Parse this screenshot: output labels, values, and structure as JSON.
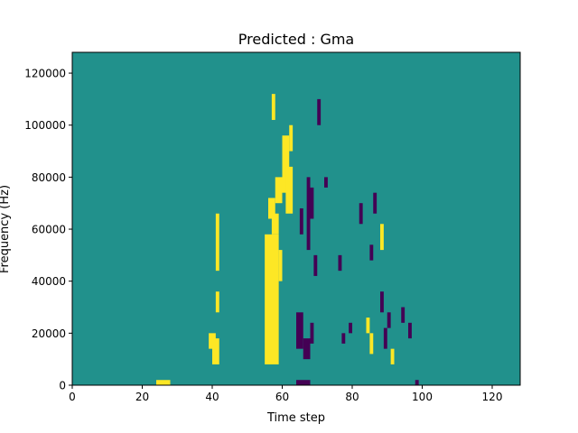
{
  "chart_data": {
    "type": "heatmap",
    "title": "Predicted : Gma",
    "xlabel": "Time step",
    "ylabel": "Frequency (Hz)",
    "xlim": [
      0,
      128
    ],
    "ylim": [
      0,
      128000
    ],
    "xticks": [
      0,
      20,
      40,
      60,
      80,
      100,
      120
    ],
    "yticks": [
      0,
      20000,
      40000,
      60000,
      80000,
      100000,
      120000
    ],
    "xtick_labels": [
      "0",
      "20",
      "40",
      "60",
      "80",
      "100",
      "120"
    ],
    "ytick_labels": [
      "0",
      "20000",
      "40000",
      "60000",
      "80000",
      "100000",
      "120000"
    ],
    "cell_height_hz": 2000,
    "colormap": "viridis",
    "levels": {
      "background": 0,
      "low": -1,
      "high": 1
    },
    "colors": {
      "background": "#21918c",
      "low": "#440154",
      "high": "#fde725"
    },
    "high_blocks": [
      {
        "t": [
          55,
          59
        ],
        "f": [
          8000,
          58000
        ]
      },
      {
        "t": [
          57,
          59
        ],
        "f": [
          58000,
          66000
        ]
      },
      {
        "t": [
          56,
          58
        ],
        "f": [
          64000,
          72000
        ]
      },
      {
        "t": [
          58,
          60
        ],
        "f": [
          70000,
          80000
        ]
      },
      {
        "t": [
          60,
          62
        ],
        "f": [
          74000,
          96000
        ]
      },
      {
        "t": [
          61,
          63
        ],
        "f": [
          66000,
          84000
        ]
      },
      {
        "t": [
          62,
          63
        ],
        "f": [
          90000,
          100000
        ]
      },
      {
        "t": [
          57,
          58
        ],
        "f": [
          102000,
          112000
        ]
      },
      {
        "t": [
          59,
          60
        ],
        "f": [
          40000,
          52000
        ]
      },
      {
        "t": [
          40,
          42
        ],
        "f": [
          8000,
          18000
        ]
      },
      {
        "t": [
          41,
          42
        ],
        "f": [
          28000,
          36000
        ]
      },
      {
        "t": [
          41,
          42
        ],
        "f": [
          44000,
          66000
        ]
      },
      {
        "t": [
          39,
          41
        ],
        "f": [
          14000,
          20000
        ]
      },
      {
        "t": [
          24,
          28
        ],
        "f": [
          0,
          2000
        ]
      },
      {
        "t": [
          85,
          86
        ],
        "f": [
          12000,
          20000
        ]
      },
      {
        "t": [
          84,
          85
        ],
        "f": [
          20000,
          26000
        ]
      },
      {
        "t": [
          88,
          89
        ],
        "f": [
          52000,
          62000
        ]
      },
      {
        "t": [
          91,
          92
        ],
        "f": [
          8000,
          14000
        ]
      }
    ],
    "low_blocks": [
      {
        "t": [
          64,
          68
        ],
        "f": [
          0,
          2000
        ]
      },
      {
        "t": [
          64,
          66
        ],
        "f": [
          14000,
          28000
        ]
      },
      {
        "t": [
          66,
          68
        ],
        "f": [
          10000,
          18000
        ]
      },
      {
        "t": [
          68,
          69
        ],
        "f": [
          16000,
          24000
        ]
      },
      {
        "t": [
          67,
          68
        ],
        "f": [
          52000,
          80000
        ]
      },
      {
        "t": [
          68,
          69
        ],
        "f": [
          64000,
          76000
        ]
      },
      {
        "t": [
          65,
          66
        ],
        "f": [
          58000,
          68000
        ]
      },
      {
        "t": [
          69,
          70
        ],
        "f": [
          42000,
          50000
        ]
      },
      {
        "t": [
          70,
          71
        ],
        "f": [
          100000,
          110000
        ]
      },
      {
        "t": [
          88,
          89
        ],
        "f": [
          28000,
          36000
        ]
      },
      {
        "t": [
          90,
          91
        ],
        "f": [
          22000,
          28000
        ]
      },
      {
        "t": [
          89,
          90
        ],
        "f": [
          14000,
          22000
        ]
      },
      {
        "t": [
          94,
          95
        ],
        "f": [
          24000,
          30000
        ]
      },
      {
        "t": [
          96,
          97
        ],
        "f": [
          18000,
          24000
        ]
      },
      {
        "t": [
          98,
          99
        ],
        "f": [
          0,
          2000
        ]
      },
      {
        "t": [
          82,
          83
        ],
        "f": [
          62000,
          70000
        ]
      },
      {
        "t": [
          85,
          86
        ],
        "f": [
          48000,
          54000
        ]
      },
      {
        "t": [
          86,
          87
        ],
        "f": [
          66000,
          74000
        ]
      },
      {
        "t": [
          72,
          73
        ],
        "f": [
          76000,
          80000
        ]
      },
      {
        "t": [
          76,
          77
        ],
        "f": [
          44000,
          50000
        ]
      },
      {
        "t": [
          77,
          78
        ],
        "f": [
          16000,
          20000
        ]
      },
      {
        "t": [
          79,
          80
        ],
        "f": [
          20000,
          24000
        ]
      }
    ]
  }
}
